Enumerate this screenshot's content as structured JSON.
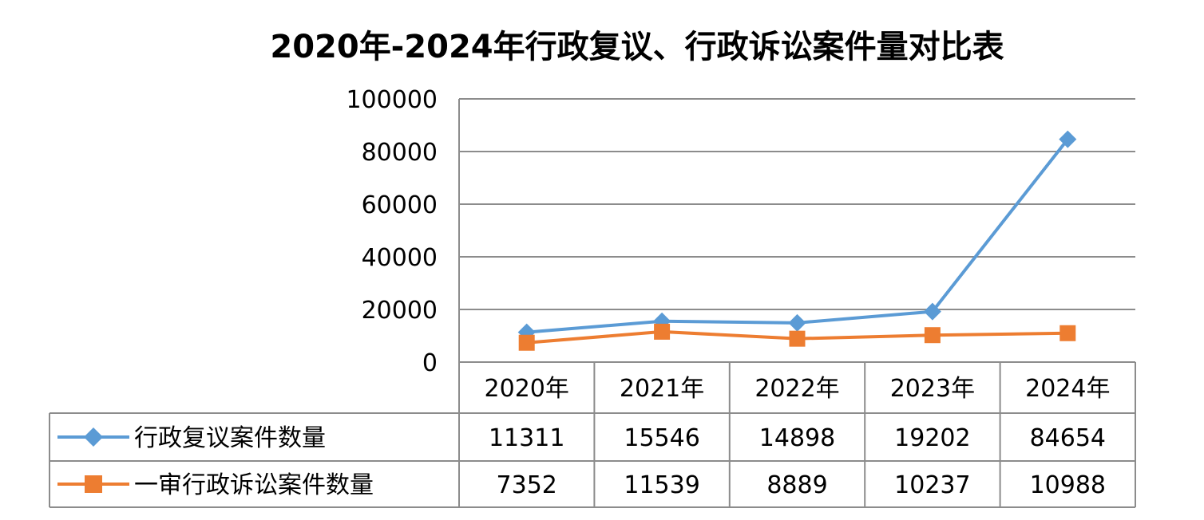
{
  "chart_data": {
    "type": "line",
    "title": "2020年-2024年行政复议、行政诉讼案件量对比表",
    "categories": [
      "2020年",
      "2021年",
      "2022年",
      "2023年",
      "2024年"
    ],
    "ylim": [
      0,
      100000
    ],
    "yticks": [
      "100000",
      "80000",
      "60000",
      "40000",
      "20000",
      "0"
    ],
    "ytick_values": [
      100000,
      80000,
      60000,
      40000,
      20000,
      0
    ],
    "grid": true,
    "legend": "data-table",
    "series": [
      {
        "name": "行政复议案件数量",
        "values": [
          11311,
          15546,
          14898,
          19202,
          84654
        ],
        "labels": [
          "11311",
          "15546",
          "14898",
          "19202",
          "84654"
        ],
        "color": "#5b9bd5",
        "marker": "diamond"
      },
      {
        "name": "一审行政诉讼案件数量",
        "values": [
          7352,
          11539,
          8889,
          10237,
          10988
        ],
        "labels": [
          "7352",
          "11539",
          "8889",
          "10237",
          "10988"
        ],
        "color": "#ed7d31",
        "marker": "square"
      }
    ]
  }
}
